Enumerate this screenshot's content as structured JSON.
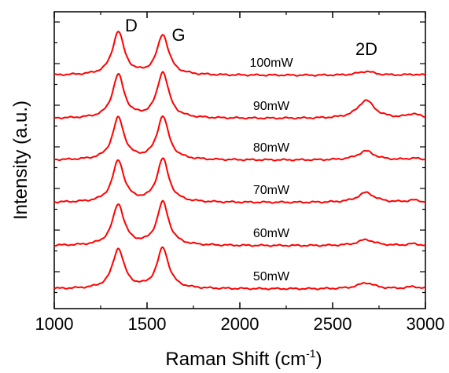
{
  "chart_data": {
    "type": "line",
    "title": "",
    "xlabel": "Raman Shift (cm",
    "xlabel_sup": "-1",
    "xlabel_close": ")",
    "ylabel": "Intensity (a.u.)",
    "xlim": [
      1000,
      3000
    ],
    "xticks": [
      1000,
      1500,
      2000,
      2500,
      3000
    ],
    "xtick_labels": [
      "1000",
      "1500",
      "2000",
      "2500",
      "3000"
    ],
    "y_ticks_labeled": false,
    "grid": false,
    "legend": "none",
    "line_color": "#ff0000",
    "peak_labels": [
      {
        "text": "D",
        "x": 1345
      },
      {
        "text": "G",
        "x": 1585
      },
      {
        "text": "2D",
        "x": 2680
      }
    ],
    "peaks": {
      "D": {
        "center": 1345,
        "width": 38
      },
      "G": {
        "center": 1585,
        "width": 38
      },
      "2D": {
        "center": 2680,
        "width": 55
      },
      "shoulder": {
        "center": 2935,
        "width": 40
      }
    },
    "series": [
      {
        "name": "100mW",
        "amplitudes": {
          "D": 1.0,
          "G": 0.93,
          "2D": 0.09,
          "shoulder": 0.02
        }
      },
      {
        "name": "90mW",
        "amplitudes": {
          "D": 1.0,
          "G": 1.06,
          "2D": 0.42,
          "shoulder": 0.1
        }
      },
      {
        "name": "80mW",
        "amplitudes": {
          "D": 0.97,
          "G": 1.0,
          "2D": 0.21,
          "shoulder": 0.04
        }
      },
      {
        "name": "70mW",
        "amplitudes": {
          "D": 0.96,
          "G": 1.0,
          "2D": 0.23,
          "shoulder": 0.05
        }
      },
      {
        "name": "60mW",
        "amplitudes": {
          "D": 0.95,
          "G": 1.0,
          "2D": 0.14,
          "shoulder": 0.04
        }
      },
      {
        "name": "50mW",
        "amplitudes": {
          "D": 0.92,
          "G": 0.94,
          "2D": 0.14,
          "shoulder": 0.05
        }
      }
    ]
  }
}
